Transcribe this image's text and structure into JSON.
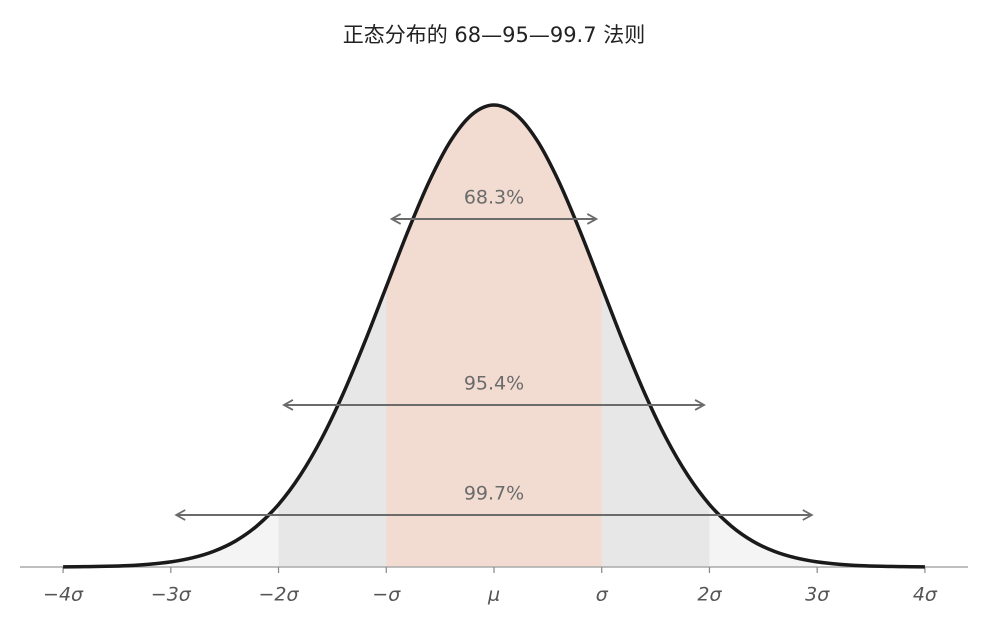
{
  "chart_data": {
    "type": "area",
    "title": "正态分布的 68—95—99.7 法则",
    "x": [
      -4,
      -3.8,
      -3.6,
      -3.4,
      -3.2,
      -3,
      -2.8,
      -2.6,
      -2.4,
      -2.2,
      -2,
      -1.8,
      -1.6,
      -1.4,
      -1.2,
      -1,
      -0.8,
      -0.6,
      -0.4,
      -0.2,
      0,
      0.2,
      0.4,
      0.6,
      0.8,
      1,
      1.2,
      1.4,
      1.6,
      1.8,
      2,
      2.2,
      2.4,
      2.6,
      2.8,
      3,
      3.2,
      3.4,
      3.6,
      3.8,
      4
    ],
    "values": [
      0.0001,
      0.0003,
      0.0006,
      0.0012,
      0.0024,
      0.0044,
      0.0079,
      0.0136,
      0.0224,
      0.0355,
      0.054,
      0.079,
      0.1109,
      0.1497,
      0.1942,
      0.242,
      0.2897,
      0.3332,
      0.3683,
      0.391,
      0.3989,
      0.391,
      0.3683,
      0.3332,
      0.2897,
      0.242,
      0.1942,
      0.1497,
      0.1109,
      0.079,
      0.054,
      0.0355,
      0.0224,
      0.0136,
      0.0079,
      0.0044,
      0.0024,
      0.0012,
      0.0006,
      0.0003,
      0.0001
    ],
    "color": "#1a1a1a",
    "xlim": [
      -4.4,
      4.4
    ],
    "ylim": [
      0,
      0.42
    ],
    "xticks": [
      {
        "value": -4,
        "label": "−4σ"
      },
      {
        "value": -3,
        "label": "−3σ"
      },
      {
        "value": -2,
        "label": "−2σ"
      },
      {
        "value": -1,
        "label": "−σ"
      },
      {
        "value": 0,
        "label": "μ"
      },
      {
        "value": 1,
        "label": "σ"
      },
      {
        "value": 2,
        "label": "2σ"
      },
      {
        "value": 3,
        "label": "3σ"
      },
      {
        "value": 4,
        "label": "4σ"
      }
    ],
    "bands": {
      "from": [
        -4,
        -3,
        -2,
        -1
      ],
      "to": [
        4,
        3,
        2,
        1
      ],
      "colors": [
        "#ffffff",
        "#f4f4f4",
        "#e7e7e7",
        "#f2dcd2"
      ]
    },
    "intervals": {
      "values": [
        68.3,
        95.4,
        99.7
      ],
      "value_labels": [
        "68.3%",
        "95.4%",
        "99.7%"
      ],
      "from": [
        -0.95,
        -1.95,
        -2.95
      ],
      "to": [
        0.95,
        1.95,
        2.95
      ],
      "y": [
        0.3005,
        0.1399,
        0.0449
      ],
      "color": "#6b6b6b"
    }
  }
}
